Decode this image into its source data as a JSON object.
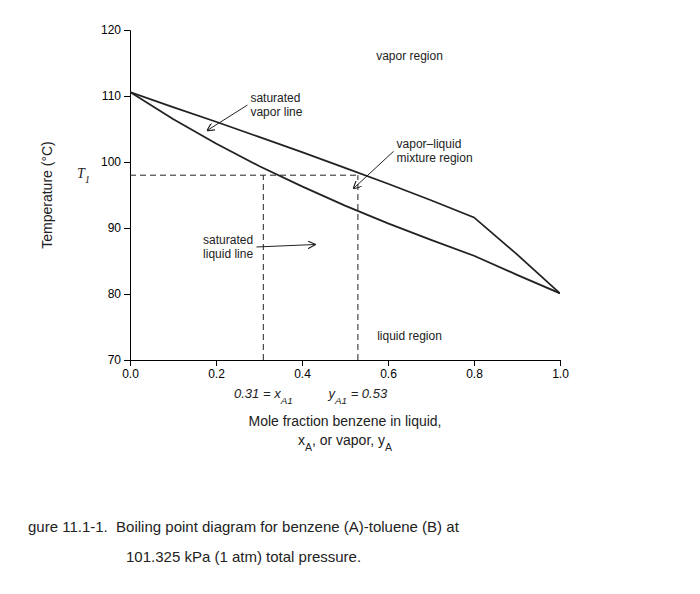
{
  "chart_data": {
    "type": "line",
    "ylabel": "Temperature (°C)",
    "xlabel": [
      "Mole fraction benzene in liquid,",
      "xA, or vapor, yA"
    ],
    "xlim": [
      0,
      1.0
    ],
    "ylim": [
      70,
      120
    ],
    "xticks": [
      {
        "value": 0,
        "label": "0.0"
      },
      0.2,
      0.4,
      0.6,
      0.8,
      {
        "value": 1.0,
        "label": "1.0"
      }
    ],
    "yticks": [
      70,
      80,
      90,
      100,
      110,
      120
    ],
    "grid": false,
    "series": [
      {
        "x": [
          0.0,
          0.1,
          0.2,
          0.3,
          0.4,
          0.5,
          0.6,
          0.7,
          0.8,
          0.9,
          1.0
        ],
        "values": [
          110.6,
          108.3,
          106.1,
          103.8,
          101.5,
          99.1,
          96.7,
          94.2,
          91.6,
          86.0,
          80.1
        ]
      },
      {
        "x": [
          0.0,
          0.1,
          0.2,
          0.3,
          0.4,
          0.5,
          0.6,
          0.7,
          0.8,
          0.9,
          1.0
        ],
        "values": [
          110.6,
          106.5,
          102.8,
          99.4,
          96.3,
          93.4,
          90.7,
          88.2,
          85.8,
          82.9,
          80.1
        ]
      }
    ],
    "t1": {
      "value": 98.0,
      "label": "T1"
    },
    "x_a1": {
      "value": 0.31,
      "label": "0.31 = xA1"
    },
    "y_a1": {
      "value": 0.53,
      "label": "yA1 = 0.53"
    },
    "annotations": [
      [
        "vapor region"
      ],
      [
        "liquid region"
      ],
      [
        "vapor–liquid",
        "mixture region"
      ],
      [
        "saturated",
        "vapor line"
      ],
      [
        "saturated",
        "liquid line"
      ]
    ],
    "caption": [
      "gure 11.1-1.  Boiling point diagram for benzene (A)-toluene (B) at",
      "101.325 kPa (1 atm) total pressure."
    ]
  }
}
